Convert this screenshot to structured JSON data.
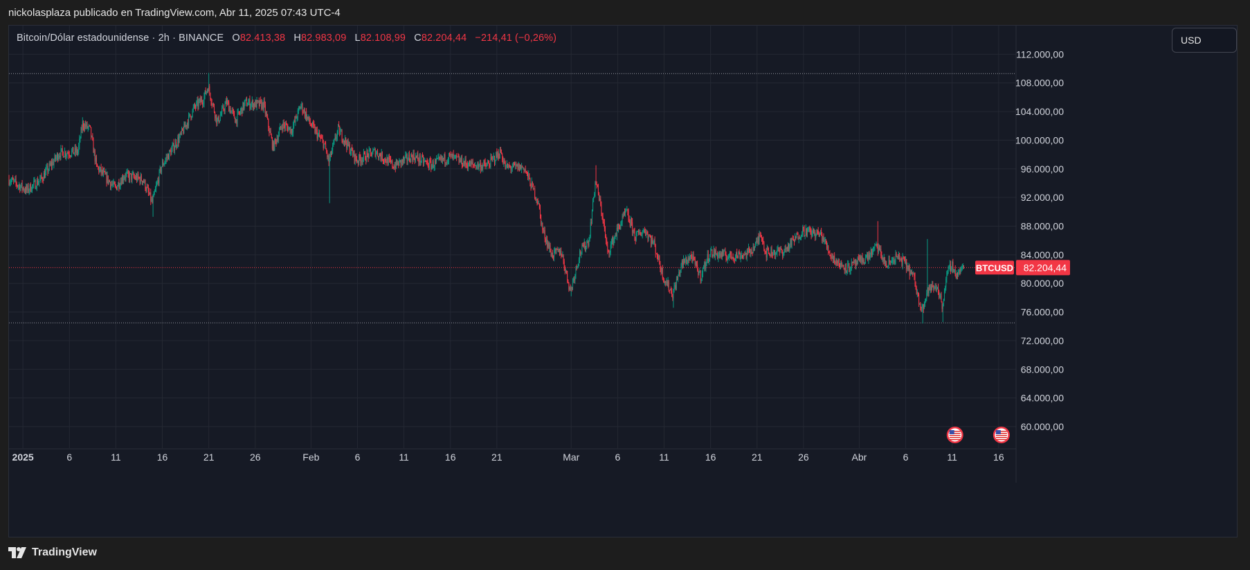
{
  "header": {
    "publisher_line": "nickolasplaza publicado en TradingView.com, Abr 11, 2025 07:43 UTC-4"
  },
  "symbol": {
    "name": "Bitcoin/Dólar estadounidense · 2h · BINANCE",
    "open_label": "O",
    "open": "82.413,38",
    "high_label": "H",
    "high": "82.983,09",
    "low_label": "L",
    "low": "82.108,99",
    "close_label": "C",
    "close": "82.204,44",
    "change": "−214,41 (−0,26%)"
  },
  "currency_button": {
    "label": "USD"
  },
  "price_tag": {
    "ticker": "BTCUSD",
    "price": "82.204,44"
  },
  "footer": {
    "brand": "TradingView"
  },
  "colors": {
    "background": "#161a25",
    "up": "#089981",
    "down": "#f23645",
    "grid": "#242833",
    "text": "#d1d4dc"
  },
  "icons": {
    "event_markers": "us-flag-icon",
    "logo": "tradingview-logo-icon"
  },
  "chart_data": {
    "type": "candlestick",
    "symbol": "BTCUSD",
    "interval": "2h",
    "y_ticks": [
      60000,
      64000,
      68000,
      72000,
      76000,
      80000,
      84000,
      88000,
      92000,
      96000,
      100000,
      104000,
      108000,
      112000
    ],
    "y_tick_labels": [
      "60.000,00",
      "64.000,00",
      "68.000,00",
      "72.000,00",
      "76.000,00",
      "80.000,00",
      "84.000,00",
      "88.000,00",
      "92.000,00",
      "96.000,00",
      "100.000,00",
      "104.000,00",
      "108.000,00",
      "112.000,00"
    ],
    "ylim": [
      57000,
      116000
    ],
    "x_range_days": [
      -1.5,
      106.8
    ],
    "x_ticks": [
      {
        "label": "2025",
        "day": 0
      },
      {
        "label": "6",
        "day": 5
      },
      {
        "label": "11",
        "day": 10
      },
      {
        "label": "16",
        "day": 15
      },
      {
        "label": "21",
        "day": 20
      },
      {
        "label": "26",
        "day": 25
      },
      {
        "label": "Feb",
        "day": 31
      },
      {
        "label": "6",
        "day": 36
      },
      {
        "label": "11",
        "day": 41
      },
      {
        "label": "16",
        "day": 46
      },
      {
        "label": "21",
        "day": 51
      },
      {
        "label": "Mar",
        "day": 59
      },
      {
        "label": "6",
        "day": 64
      },
      {
        "label": "11",
        "day": 69
      },
      {
        "label": "16",
        "day": 74
      },
      {
        "label": "21",
        "day": 79
      },
      {
        "label": "26",
        "day": 84
      },
      {
        "label": "Abr",
        "day": 90
      },
      {
        "label": "6",
        "day": 95
      },
      {
        "label": "11",
        "day": 100
      },
      {
        "label": "16",
        "day": 105
      }
    ],
    "horizontal_lines": [
      109300,
      74500
    ],
    "current_price": 82204.44,
    "path_anchors": [
      {
        "day": -1.5,
        "price": 94600
      },
      {
        "day": 0.5,
        "price": 93000
      },
      {
        "day": 2,
        "price": 94500
      },
      {
        "day": 4,
        "price": 98200
      },
      {
        "day": 6,
        "price": 98400
      },
      {
        "day": 6.5,
        "price": 102300
      },
      {
        "day": 7.3,
        "price": 101500
      },
      {
        "day": 8,
        "price": 96300
      },
      {
        "day": 10,
        "price": 93300
      },
      {
        "day": 11,
        "price": 95100
      },
      {
        "day": 13,
        "price": 94500
      },
      {
        "day": 14,
        "price": 91200
      },
      {
        "day": 15,
        "price": 96400
      },
      {
        "day": 17,
        "price": 100500
      },
      {
        "day": 18.5,
        "price": 104500
      },
      {
        "day": 19.5,
        "price": 105800
      },
      {
        "day": 20,
        "price": 107500
      },
      {
        "day": 21,
        "price": 102500
      },
      {
        "day": 22,
        "price": 105300
      },
      {
        "day": 23,
        "price": 102800
      },
      {
        "day": 24,
        "price": 105200
      },
      {
        "day": 26,
        "price": 104900
      },
      {
        "day": 27,
        "price": 99000
      },
      {
        "day": 28,
        "price": 102200
      },
      {
        "day": 29,
        "price": 101400
      },
      {
        "day": 30,
        "price": 104900
      },
      {
        "day": 31,
        "price": 102300
      },
      {
        "day": 32.5,
        "price": 99400
      },
      {
        "day": 33,
        "price": 97000
      },
      {
        "day": 34,
        "price": 101500
      },
      {
        "day": 36,
        "price": 97200
      },
      {
        "day": 38,
        "price": 98400
      },
      {
        "day": 40,
        "price": 96400
      },
      {
        "day": 42,
        "price": 97800
      },
      {
        "day": 44,
        "price": 96500
      },
      {
        "day": 46,
        "price": 97700
      },
      {
        "day": 48,
        "price": 96600
      },
      {
        "day": 50,
        "price": 96400
      },
      {
        "day": 51.5,
        "price": 98400
      },
      {
        "day": 52,
        "price": 96200
      },
      {
        "day": 54,
        "price": 96200
      },
      {
        "day": 55.5,
        "price": 91500
      },
      {
        "day": 56,
        "price": 87500
      },
      {
        "day": 57,
        "price": 84000
      },
      {
        "day": 58,
        "price": 84500
      },
      {
        "day": 59,
        "price": 78900
      },
      {
        "day": 60,
        "price": 84200
      },
      {
        "day": 61,
        "price": 86100
      },
      {
        "day": 61.7,
        "price": 94500
      },
      {
        "day": 62.5,
        "price": 89000
      },
      {
        "day": 63,
        "price": 84200
      },
      {
        "day": 64,
        "price": 87300
      },
      {
        "day": 65,
        "price": 90000
      },
      {
        "day": 66,
        "price": 86500
      },
      {
        "day": 67,
        "price": 87500
      },
      {
        "day": 68,
        "price": 85500
      },
      {
        "day": 69,
        "price": 80900
      },
      {
        "day": 70,
        "price": 78500
      },
      {
        "day": 71,
        "price": 82700
      },
      {
        "day": 72,
        "price": 83800
      },
      {
        "day": 73,
        "price": 81000
      },
      {
        "day": 74,
        "price": 84300
      },
      {
        "day": 76,
        "price": 83800
      },
      {
        "day": 78,
        "price": 84100
      },
      {
        "day": 79,
        "price": 85400
      },
      {
        "day": 79.5,
        "price": 87200
      },
      {
        "day": 80,
        "price": 84300
      },
      {
        "day": 82,
        "price": 84500
      },
      {
        "day": 84,
        "price": 87400
      },
      {
        "day": 86,
        "price": 86800
      },
      {
        "day": 87,
        "price": 84000
      },
      {
        "day": 88,
        "price": 82600
      },
      {
        "day": 89,
        "price": 82200
      },
      {
        "day": 91,
        "price": 83700
      },
      {
        "day": 92,
        "price": 85200
      },
      {
        "day": 93,
        "price": 82400
      },
      {
        "day": 94,
        "price": 83700
      },
      {
        "day": 95,
        "price": 82900
      },
      {
        "day": 96,
        "price": 80600
      },
      {
        "day": 96.5,
        "price": 77500
      },
      {
        "day": 97,
        "price": 76800
      },
      {
        "day": 97.5,
        "price": 79200
      },
      {
        "day": 98.5,
        "price": 79500
      },
      {
        "day": 99,
        "price": 76900
      },
      {
        "day": 99.5,
        "price": 81000
      },
      {
        "day": 100,
        "price": 82700
      },
      {
        "day": 100.5,
        "price": 81200
      },
      {
        "day": 101.3,
        "price": 82200
      }
    ],
    "extreme_candles": [
      {
        "day": 20,
        "high": 109400
      },
      {
        "day": 33,
        "low": 91200
      },
      {
        "day": 14,
        "low": 89300
      },
      {
        "day": 59,
        "low": 78200
      },
      {
        "day": 61.7,
        "high": 96500
      },
      {
        "day": 70,
        "low": 76600
      },
      {
        "day": 96.8,
        "low": 74400
      },
      {
        "day": 97.3,
        "high": 86200
      },
      {
        "day": 99,
        "low": 74600
      },
      {
        "day": 92,
        "high": 88700
      }
    ],
    "event_markers": [
      {
        "day": 100.3
      },
      {
        "day": 105.3
      }
    ]
  }
}
